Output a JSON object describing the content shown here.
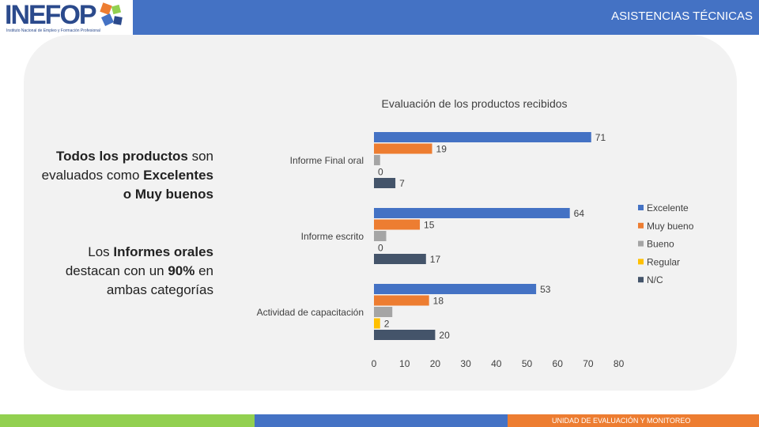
{
  "header": {
    "logo_text": "INEFOP",
    "logo_subtitle": "Instituto Nacional de Empleo y Formación Profesional",
    "title": "ASISTENCIAS TÉCNICAS"
  },
  "summary": {
    "line1_bold": "Todos los productos",
    "line1_rest": " son evaluados como ",
    "line1_bold2": "Excelentes o Muy buenos",
    "line2_pre": "Los ",
    "line2_bold": "Informes orales",
    "line2_mid": " destacan con un ",
    "line2_bold2": "90%",
    "line2_rest": " en ambas categorías"
  },
  "footer": {
    "label": "UNIDAD DE EVALUACIÓN Y MONITOREO"
  },
  "colors": {
    "header_blue": "#4472c4",
    "Excelente": "#4472c4",
    "Muy bueno": "#ed7d31",
    "Bueno": "#a5a5a5",
    "Regular": "#ffc000",
    "N/C": "#44546a"
  },
  "chart_data": {
    "type": "bar",
    "orientation": "horizontal",
    "title": "Evaluación de los productos recibidos",
    "categories": [
      "Informe Final oral",
      "Informe escrito",
      "Actividad de capacitación"
    ],
    "series": [
      {
        "name": "Excelente",
        "values": [
          71,
          64,
          53
        ]
      },
      {
        "name": "Muy bueno",
        "values": [
          19,
          15,
          18
        ]
      },
      {
        "name": "Bueno",
        "values": [
          2,
          4,
          6
        ]
      },
      {
        "name": "Regular",
        "values": [
          0,
          0,
          2
        ]
      },
      {
        "name": "N/C",
        "values": [
          7,
          17,
          20
        ]
      }
    ],
    "data_labels": [
      [
        "71",
        "19",
        "",
        "0",
        "7"
      ],
      [
        "64",
        "15",
        "",
        "0",
        "17"
      ],
      [
        "53",
        "18",
        "",
        "2",
        "20"
      ]
    ],
    "xlim": [
      0,
      80
    ],
    "xticks": [
      "0",
      "10",
      "20",
      "30",
      "40",
      "50",
      "60",
      "70",
      "80"
    ],
    "legend_position": "right",
    "grid": false
  }
}
